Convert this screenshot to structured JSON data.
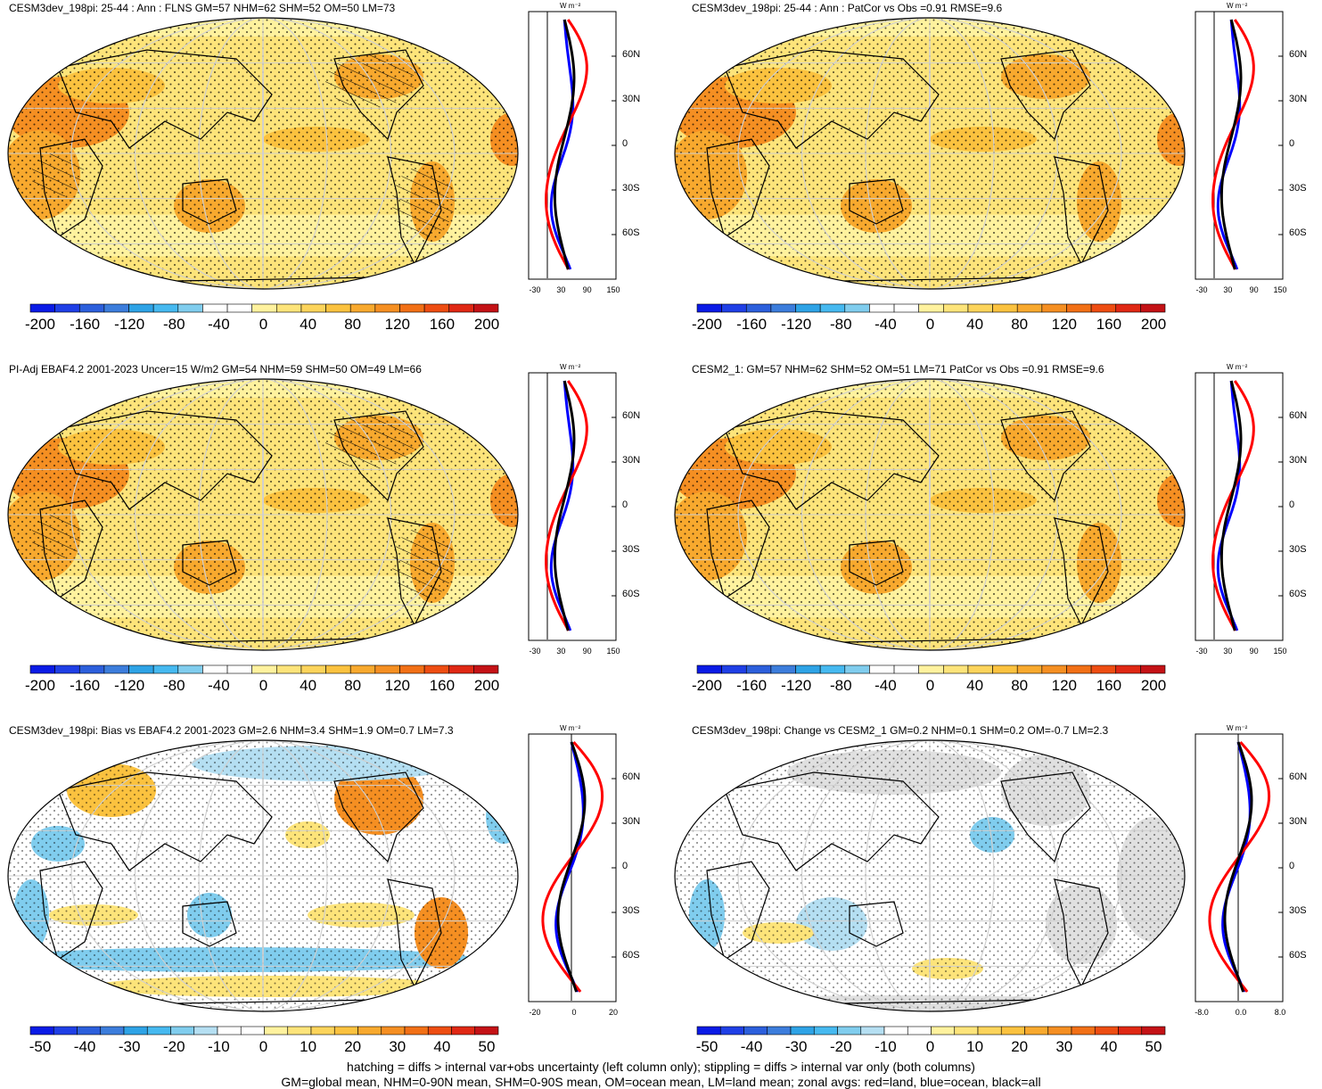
{
  "panels": [
    {
      "title": "CESM3dev_198pi: 25-44 : Ann : FLNS GM=57 NHM=62 SHM=52 OM=50 LM=73",
      "cbar_labels": [
        "-200",
        "-160",
        "-120",
        "-80",
        "-40",
        "0",
        "40",
        "80",
        "120",
        "160",
        "200"
      ],
      "cbar_type": "full",
      "zonal_ticks": [
        "-30",
        "30",
        "90",
        "150"
      ],
      "zonal_unit": "W m⁻²",
      "lat_labels": [
        "60N",
        "30N",
        "0",
        "30S",
        "60S"
      ],
      "map_style": "flux"
    },
    {
      "title": "CESM3dev_198pi: 25-44 : Ann : PatCor vs Obs =0.91 RMSE=9.6",
      "cbar_labels": [
        "-200",
        "-160",
        "-120",
        "-80",
        "-40",
        "0",
        "40",
        "80",
        "120",
        "160",
        "200"
      ],
      "cbar_type": "full",
      "zonal_ticks": [
        "-30",
        "30",
        "90",
        "150"
      ],
      "zonal_unit": "W m⁻²",
      "lat_labels": [
        "60N",
        "30N",
        "0",
        "30S",
        "60S"
      ],
      "map_style": "flux"
    },
    {
      "title": "PI-Adj EBAF4.2 2001-2023 Uncer=15 W/m2 GM=54 NHM=59 SHM=50 OM=49 LM=66",
      "cbar_labels": [
        "-200",
        "-160",
        "-120",
        "-80",
        "-40",
        "0",
        "40",
        "80",
        "120",
        "160",
        "200"
      ],
      "cbar_type": "full",
      "zonal_ticks": [
        "-30",
        "30",
        "90",
        "150"
      ],
      "zonal_unit": "W m⁻²",
      "lat_labels": [
        "60N",
        "30N",
        "0",
        "30S",
        "60S"
      ],
      "map_style": "flux"
    },
    {
      "title": "CESM2_1: GM=57 NHM=62 SHM=52 OM=51 LM=71 PatCor vs Obs =0.91 RMSE=9.6",
      "cbar_labels": [
        "-200",
        "-160",
        "-120",
        "-80",
        "-40",
        "0",
        "40",
        "80",
        "120",
        "160",
        "200"
      ],
      "cbar_type": "full",
      "zonal_ticks": [
        "-30",
        "30",
        "90",
        "150"
      ],
      "zonal_unit": "W m⁻²",
      "lat_labels": [
        "60N",
        "30N",
        "0",
        "30S",
        "60S"
      ],
      "map_style": "flux"
    },
    {
      "title": "CESM3dev_198pi: Bias vs EBAF4.2 2001-2023 GM=2.6 NHM=3.4 SHM=1.9 OM=0.7 LM=7.3",
      "cbar_labels": [
        "-50",
        "-40",
        "-30",
        "-20",
        "-10",
        "0",
        "10",
        "20",
        "30",
        "40",
        "50"
      ],
      "cbar_type": "diff",
      "zonal_ticks": [
        "-20",
        "0",
        "20"
      ],
      "zonal_unit": "W m⁻²",
      "lat_labels": [
        "60N",
        "30N",
        "0",
        "30S",
        "60S"
      ],
      "map_style": "bias"
    },
    {
      "title": "CESM3dev_198pi: Change vs CESM2_1 GM=0.2 NHM=0.1 SHM=0.2 OM=-0.7 LM=2.3",
      "cbar_labels": [
        "-50",
        "-40",
        "-30",
        "-20",
        "-10",
        "0",
        "10",
        "20",
        "30",
        "40",
        "50"
      ],
      "cbar_type": "diff",
      "zonal_ticks": [
        "-8.0",
        "0.0",
        "8.0"
      ],
      "zonal_unit": "W m⁻²",
      "lat_labels": [
        "60N",
        "30N",
        "0",
        "30S",
        "60S"
      ],
      "map_style": "change"
    }
  ],
  "colors": {
    "full": [
      "#0a1be6",
      "#1f3fe6",
      "#2c5fdc",
      "#3c7ddc",
      "#2ea3e6",
      "#46b9f0",
      "#80cdee",
      "#ffffff",
      "#ffffff",
      "#fff29e",
      "#fde47a",
      "#fcd45b",
      "#fbc23f",
      "#f8a92e",
      "#f58f22",
      "#f27016",
      "#ee4d12",
      "#e02814",
      "#c41216"
    ],
    "diff": [
      "#0a1be6",
      "#1f3fe6",
      "#2c5fdc",
      "#3c7ddc",
      "#2ea3e6",
      "#46b9f0",
      "#80cdee",
      "#b5dff2",
      "#ffffff",
      "#ffffff",
      "#fff29e",
      "#fde47a",
      "#fcd45b",
      "#fbc23f",
      "#f8a92e",
      "#f58f22",
      "#f27016",
      "#ee4d12",
      "#e02814",
      "#c41216"
    ],
    "land": "#e4e129",
    "zonal_land": "#ff0000",
    "zonal_ocean": "#0000ff",
    "zonal_all": "#000000"
  },
  "footer": {
    "line1": "hatching = diffs > internal var+obs uncertainty (left column only); stippling = diffs > internal var only (both columns)",
    "line2": "GM=global mean, NHM=0-90N mean, SHM=0-90S mean, OM=ocean mean, LM=land mean; zonal avgs: red=land, blue=ocean, black=all"
  }
}
